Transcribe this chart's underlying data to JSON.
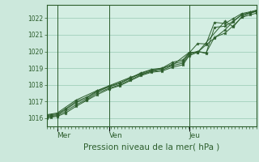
{
  "bg_color": "#cce8dc",
  "plot_bg_color": "#d4eee3",
  "grid_color": "#a8d4c0",
  "line_color": "#2d5e2d",
  "marker_color": "#2d5e2d",
  "title": "Pression niveau de la mer( hPa )",
  "title_fontsize": 8,
  "title_color": "#2d5e2d",
  "ylim": [
    1015.5,
    1022.8
  ],
  "yticks": [
    1016,
    1017,
    1018,
    1019,
    1020,
    1021,
    1022
  ],
  "day_labels": [
    "Mer",
    "Ven",
    "Jeu"
  ],
  "day_positions": [
    0.05,
    0.3,
    0.68
  ],
  "lines": [
    {
      "x": [
        0.0,
        0.02,
        0.05,
        0.09,
        0.14,
        0.19,
        0.24,
        0.3,
        0.35,
        0.4,
        0.45,
        0.5,
        0.55,
        0.6,
        0.65,
        0.68,
        0.72,
        0.76,
        0.8,
        0.85,
        0.89,
        0.93,
        0.97,
        1.0
      ],
      "y": [
        1016.0,
        1016.05,
        1016.1,
        1016.3,
        1016.7,
        1017.05,
        1017.4,
        1017.75,
        1017.95,
        1018.25,
        1018.55,
        1018.75,
        1018.82,
        1019.05,
        1019.2,
        1019.75,
        1019.95,
        1020.4,
        1020.8,
        1021.3,
        1021.8,
        1022.2,
        1022.35,
        1022.45
      ]
    },
    {
      "x": [
        0.0,
        0.02,
        0.05,
        0.09,
        0.14,
        0.19,
        0.24,
        0.3,
        0.35,
        0.4,
        0.45,
        0.5,
        0.55,
        0.6,
        0.65,
        0.68,
        0.72,
        0.76,
        0.8,
        0.85,
        0.89,
        0.93,
        0.97,
        1.0
      ],
      "y": [
        1016.05,
        1016.1,
        1016.15,
        1016.4,
        1016.8,
        1017.1,
        1017.5,
        1017.8,
        1018.0,
        1018.3,
        1018.6,
        1018.8,
        1018.88,
        1019.15,
        1019.3,
        1019.82,
        1020.0,
        1019.92,
        1020.85,
        1021.1,
        1021.55,
        1022.05,
        1022.2,
        1022.3
      ]
    },
    {
      "x": [
        0.0,
        0.02,
        0.05,
        0.09,
        0.14,
        0.19,
        0.24,
        0.3,
        0.35,
        0.4,
        0.45,
        0.5,
        0.55,
        0.6,
        0.65,
        0.68,
        0.72,
        0.76,
        0.8,
        0.85,
        0.89,
        0.93,
        0.97,
        1.0
      ],
      "y": [
        1016.1,
        1016.15,
        1016.2,
        1016.5,
        1016.92,
        1017.18,
        1017.58,
        1017.88,
        1018.08,
        1018.38,
        1018.68,
        1018.88,
        1018.95,
        1019.25,
        1019.4,
        1019.9,
        1020.0,
        1019.88,
        1021.45,
        1021.52,
        1021.82,
        1022.22,
        1022.3,
        1022.4
      ]
    },
    {
      "x": [
        0.0,
        0.02,
        0.05,
        0.09,
        0.14,
        0.19,
        0.24,
        0.3,
        0.35,
        0.4,
        0.45,
        0.5,
        0.55,
        0.6,
        0.65,
        0.68,
        0.72,
        0.76,
        0.8,
        0.85,
        0.89,
        0.93,
        0.97,
        1.0
      ],
      "y": [
        1016.15,
        1016.2,
        1016.25,
        1016.55,
        1017.0,
        1017.25,
        1017.62,
        1017.92,
        1018.12,
        1018.42,
        1018.72,
        1018.92,
        1019.0,
        1019.35,
        1019.5,
        1019.92,
        1020.48,
        1020.45,
        1021.75,
        1021.68,
        1021.98,
        1022.28,
        1022.38,
        1022.48
      ]
    },
    {
      "x": [
        0.0,
        0.05,
        0.14,
        0.24,
        0.3,
        0.4,
        0.5,
        0.6,
        0.68,
        0.72,
        0.85,
        0.89,
        0.93,
        0.97,
        1.0
      ],
      "y": [
        1016.2,
        1016.3,
        1017.08,
        1017.65,
        1017.95,
        1018.45,
        1018.82,
        1019.18,
        1019.95,
        1019.95,
        1021.82,
        1021.48,
        1022.08,
        1022.32,
        1022.42
      ]
    }
  ]
}
